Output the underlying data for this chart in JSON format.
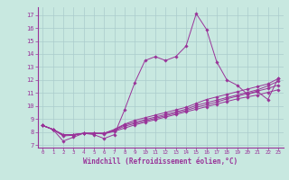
{
  "background_color": "#c8e8e0",
  "line_color": "#993399",
  "grid_color": "#aacccc",
  "xlabel": "Windchill (Refroidissement éolien,°C)",
  "xlabel_color": "#993399",
  "xticks": [
    0,
    1,
    2,
    3,
    4,
    5,
    6,
    7,
    8,
    9,
    10,
    11,
    12,
    13,
    14,
    15,
    16,
    17,
    18,
    19,
    20,
    21,
    22,
    23
  ],
  "yticks": [
    7,
    8,
    9,
    10,
    11,
    12,
    13,
    14,
    15,
    16,
    17
  ],
  "xlim": [
    -0.5,
    23.5
  ],
  "ylim": [
    6.8,
    17.6
  ],
  "lines": [
    {
      "x": [
        0,
        1,
        2,
        3,
        4,
        5,
        6,
        7,
        8,
        9,
        10,
        11,
        12,
        13,
        14,
        15,
        16,
        17,
        18,
        19,
        20,
        21,
        22,
        23
      ],
      "y": [
        8.5,
        8.2,
        7.3,
        7.6,
        7.9,
        7.8,
        7.5,
        7.8,
        9.7,
        11.8,
        13.5,
        13.8,
        13.5,
        13.8,
        14.6,
        17.1,
        15.9,
        13.4,
        12.0,
        11.6,
        10.9,
        11.1,
        10.5,
        12.1
      ]
    },
    {
      "x": [
        0,
        1,
        2,
        3,
        4,
        5,
        6,
        7,
        8,
        9,
        10,
        11,
        12,
        13,
        14,
        15,
        16,
        17,
        18,
        19,
        20,
        21,
        22,
        23
      ],
      "y": [
        8.5,
        8.2,
        7.7,
        7.75,
        7.9,
        7.9,
        7.85,
        8.05,
        8.3,
        8.55,
        8.75,
        8.95,
        9.15,
        9.35,
        9.55,
        9.75,
        9.95,
        10.15,
        10.35,
        10.55,
        10.7,
        10.85,
        11.05,
        11.25
      ]
    },
    {
      "x": [
        0,
        1,
        2,
        3,
        4,
        5,
        6,
        7,
        8,
        9,
        10,
        11,
        12,
        13,
        14,
        15,
        16,
        17,
        18,
        19,
        20,
        21,
        22,
        23
      ],
      "y": [
        8.5,
        8.2,
        7.75,
        7.8,
        7.9,
        7.9,
        7.9,
        8.1,
        8.45,
        8.65,
        8.85,
        9.05,
        9.25,
        9.45,
        9.65,
        9.9,
        10.1,
        10.3,
        10.55,
        10.75,
        10.95,
        11.15,
        11.35,
        11.6
      ]
    },
    {
      "x": [
        0,
        1,
        2,
        3,
        4,
        5,
        6,
        7,
        8,
        9,
        10,
        11,
        12,
        13,
        14,
        15,
        16,
        17,
        18,
        19,
        20,
        21,
        22,
        23
      ],
      "y": [
        8.5,
        8.2,
        7.8,
        7.8,
        7.9,
        7.9,
        7.9,
        8.15,
        8.55,
        8.75,
        8.95,
        9.15,
        9.35,
        9.55,
        9.75,
        10.05,
        10.25,
        10.45,
        10.65,
        10.85,
        11.05,
        11.25,
        11.55,
        11.9
      ]
    },
    {
      "x": [
        0,
        1,
        2,
        3,
        4,
        5,
        6,
        7,
        8,
        9,
        10,
        11,
        12,
        13,
        14,
        15,
        16,
        17,
        18,
        19,
        20,
        21,
        22,
        23
      ],
      "y": [
        8.5,
        8.2,
        7.8,
        7.8,
        7.9,
        7.9,
        7.9,
        8.2,
        8.6,
        8.9,
        9.1,
        9.3,
        9.5,
        9.7,
        9.9,
        10.2,
        10.5,
        10.7,
        10.9,
        11.1,
        11.3,
        11.5,
        11.7,
        12.1
      ]
    }
  ]
}
